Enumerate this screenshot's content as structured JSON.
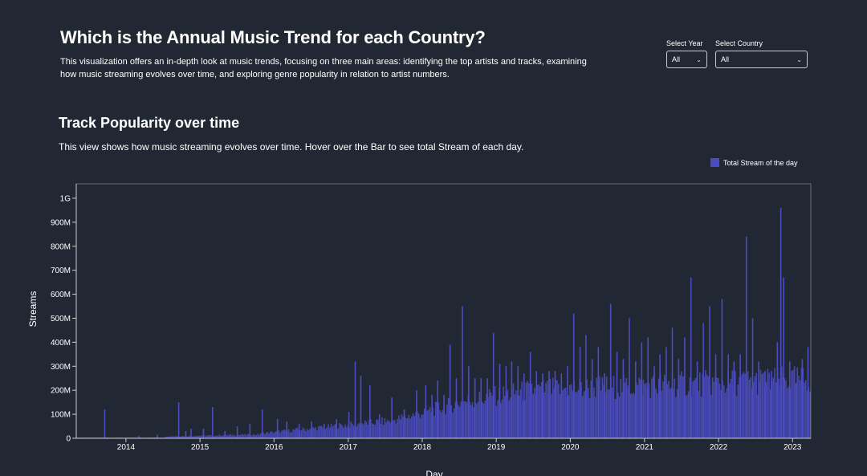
{
  "header": {
    "title": "Which is the Annual Music Trend for each Country?",
    "description": "This visualization offers an in-depth look at music trends, focusing on three main areas: identifying the top artists and tracks, examining how music streaming evolves over time, and exploring genre popularity in relation to artist numbers."
  },
  "filters": {
    "year_label": "Select Year",
    "year_value": "All",
    "country_label": "Select Country",
    "country_value": "All"
  },
  "section": {
    "title": "Track Popularity over time",
    "description": "This view shows how music streaming evolves over time. Hover over the Bar to see total Stream of each day."
  },
  "colors": {
    "bar": "#4b4cc4",
    "background": "#222833",
    "axis": "#c8ccd2"
  },
  "chart_data": {
    "type": "bar",
    "xlabel": "Day",
    "ylabel": "Streams",
    "x_range": [
      "2013-05-01",
      "2023-04-01"
    ],
    "ylim": [
      0,
      1060000000
    ],
    "y_ticks": [
      0,
      100000000,
      200000000,
      300000000,
      400000000,
      500000000,
      600000000,
      700000000,
      800000000,
      900000000,
      1000000000
    ],
    "y_tick_labels": [
      "0",
      "100M",
      "200M",
      "300M",
      "400M",
      "500M",
      "600M",
      "700M",
      "800M",
      "900M",
      "1G"
    ],
    "x_ticks": [
      "2014-01-01",
      "2015-01-01",
      "2016-01-01",
      "2017-01-01",
      "2018-01-01",
      "2019-01-01",
      "2020-01-01",
      "2021-01-01",
      "2022-01-01",
      "2023-01-01"
    ],
    "x_tick_labels": [
      "2014",
      "2015",
      "2016",
      "2017",
      "2018",
      "2019",
      "2020",
      "2021",
      "2022",
      "2023"
    ],
    "legend": {
      "label": "Total Stream of the day",
      "position": "top-right"
    },
    "series": [
      {
        "name": "Total Stream of the day",
        "x": [
          "2013-09-15",
          "2014-03-01",
          "2014-06-01",
          "2014-09-15",
          "2014-10-20",
          "2014-11-15",
          "2015-01-15",
          "2015-03-01",
          "2015-05-01",
          "2015-07-01",
          "2015-09-01",
          "2015-11-01",
          "2016-01-15",
          "2016-03-01",
          "2016-05-01",
          "2016-07-01",
          "2016-09-01",
          "2016-11-01",
          "2017-01-01",
          "2017-02-01",
          "2017-03-01",
          "2017-04-15",
          "2017-06-01",
          "2017-08-01",
          "2017-10-01",
          "2017-12-01",
          "2018-01-15",
          "2018-02-15",
          "2018-03-15",
          "2018-04-15",
          "2018-05-15",
          "2018-06-15",
          "2018-07-15",
          "2018-08-15",
          "2018-09-15",
          "2018-10-15",
          "2018-11-15",
          "2018-12-15",
          "2019-01-15",
          "2019-02-15",
          "2019-03-15",
          "2019-04-15",
          "2019-05-15",
          "2019-06-15",
          "2019-07-15",
          "2019-08-15",
          "2019-09-15",
          "2019-10-15",
          "2019-11-15",
          "2019-12-15",
          "2020-01-15",
          "2020-02-15",
          "2020-03-15",
          "2020-04-15",
          "2020-05-15",
          "2020-06-15",
          "2020-07-15",
          "2020-08-15",
          "2020-09-15",
          "2020-10-15",
          "2020-11-15",
          "2020-12-15",
          "2021-01-15",
          "2021-02-15",
          "2021-03-15",
          "2021-04-15",
          "2021-05-15",
          "2021-06-15",
          "2021-07-15",
          "2021-08-15",
          "2021-09-15",
          "2021-10-15",
          "2021-11-15",
          "2021-12-15",
          "2022-01-15",
          "2022-02-15",
          "2022-03-15",
          "2022-04-15",
          "2022-05-15",
          "2022-06-15",
          "2022-07-15",
          "2022-08-15",
          "2022-09-15",
          "2022-10-15",
          "2022-11-01",
          "2022-11-15",
          "2022-12-15",
          "2023-01-15",
          "2023-02-15",
          "2023-03-15"
        ],
        "values": [
          120000000,
          10000000,
          15000000,
          150000000,
          30000000,
          40000000,
          40000000,
          130000000,
          30000000,
          50000000,
          60000000,
          120000000,
          80000000,
          70000000,
          60000000,
          70000000,
          60000000,
          80000000,
          110000000,
          320000000,
          260000000,
          220000000,
          100000000,
          170000000,
          120000000,
          200000000,
          220000000,
          180000000,
          240000000,
          180000000,
          390000000,
          250000000,
          550000000,
          300000000,
          250000000,
          250000000,
          250000000,
          440000000,
          310000000,
          300000000,
          320000000,
          300000000,
          270000000,
          360000000,
          280000000,
          270000000,
          280000000,
          280000000,
          270000000,
          300000000,
          520000000,
          380000000,
          430000000,
          330000000,
          380000000,
          270000000,
          560000000,
          360000000,
          330000000,
          500000000,
          320000000,
          400000000,
          420000000,
          300000000,
          350000000,
          380000000,
          460000000,
          330000000,
          420000000,
          670000000,
          320000000,
          480000000,
          550000000,
          350000000,
          580000000,
          350000000,
          320000000,
          350000000,
          840000000,
          500000000,
          320000000,
          280000000,
          280000000,
          400000000,
          960000000,
          670000000,
          320000000,
          230000000,
          330000000,
          380000000
        ]
      }
    ]
  }
}
